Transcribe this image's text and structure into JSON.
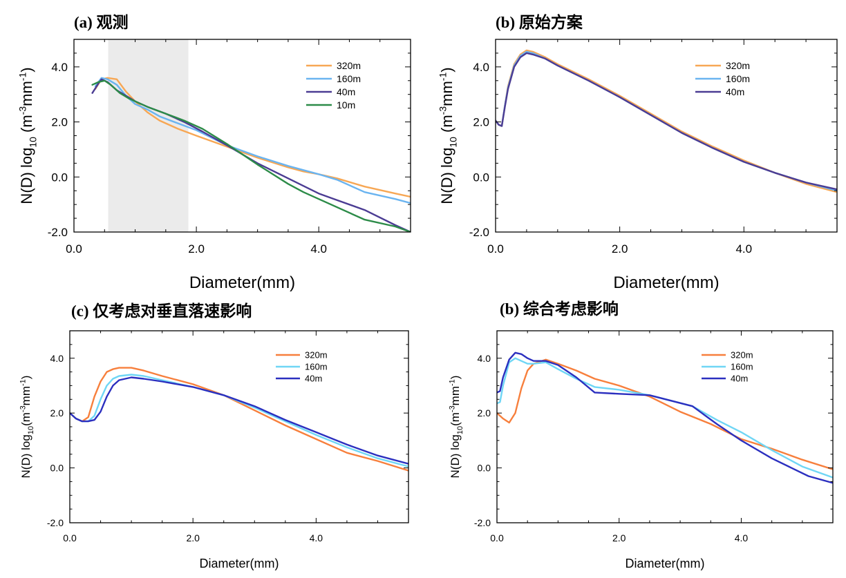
{
  "chart_data": [
    {
      "type": "line",
      "title": "(a) 观测",
      "xlabel": "Diameter(mm)",
      "ylabel": "N(D) log10 (m-3mm-1)",
      "ylabel_main": "N(D) log",
      "ylabel_sub": "10",
      "ylabel_unit_open": " (m",
      "ylabel_sup1": "-3",
      "ylabel_mid": "mm",
      "ylabel_sup2": "-1",
      "ylabel_close": ")",
      "xlim": [
        0,
        5.5
      ],
      "ylim": [
        -2,
        5
      ],
      "xticks": [
        "0.0",
        "2.0",
        "4.0"
      ],
      "yticks": [
        "-2.0",
        "0.0",
        "2.0",
        "4.0"
      ],
      "shaded_x_range": [
        0.56,
        1.87
      ],
      "shade_color": "#ebebeb",
      "legend_position": "top-right",
      "series": [
        {
          "name": "320m",
          "color": "#f7a754",
          "x": [
            0.35,
            0.45,
            0.55,
            0.7,
            0.85,
            1.0,
            1.2,
            1.4,
            1.7,
            2.0,
            2.5,
            3.0,
            3.5,
            3.75,
            4.0,
            4.3,
            4.75,
            5.25,
            5.5
          ],
          "y": [
            3.2,
            3.55,
            3.6,
            3.55,
            3.1,
            2.75,
            2.35,
            2.05,
            1.75,
            1.5,
            1.1,
            0.7,
            0.35,
            0.2,
            0.1,
            -0.05,
            -0.35,
            -0.6,
            -0.72
          ]
        },
        {
          "name": "160m",
          "color": "#6ab4f0",
          "x": [
            0.35,
            0.45,
            0.55,
            0.7,
            0.85,
            1.0,
            1.2,
            1.4,
            1.7,
            2.0,
            2.5,
            3.0,
            3.5,
            3.75,
            4.0,
            4.3,
            4.75,
            5.25,
            5.5
          ],
          "y": [
            3.3,
            3.6,
            3.55,
            3.35,
            2.95,
            2.65,
            2.45,
            2.2,
            1.95,
            1.7,
            1.15,
            0.75,
            0.4,
            0.25,
            0.1,
            -0.1,
            -0.55,
            -0.8,
            -0.95
          ]
        },
        {
          "name": "40m",
          "color": "#4b3c93",
          "x": [
            0.3,
            0.4,
            0.45,
            0.55,
            0.7,
            0.85,
            1.0,
            1.2,
            1.5,
            1.8,
            2.1,
            2.5,
            3.0,
            3.5,
            4.0,
            4.25,
            4.75,
            5.25,
            5.5
          ],
          "y": [
            3.05,
            3.4,
            3.55,
            3.45,
            3.15,
            2.95,
            2.75,
            2.55,
            2.3,
            2.0,
            1.65,
            1.15,
            0.5,
            -0.05,
            -0.6,
            -0.8,
            -1.2,
            -1.75,
            -2.0
          ]
        },
        {
          "name": "10m",
          "color": "#2c8b48",
          "x": [
            0.3,
            0.4,
            0.5,
            0.6,
            0.75,
            0.9,
            1.0,
            1.2,
            1.5,
            1.8,
            2.1,
            2.5,
            3.0,
            3.5,
            3.75,
            4.0,
            4.75,
            5.25,
            5.5
          ],
          "y": [
            3.35,
            3.45,
            3.5,
            3.35,
            3.05,
            2.85,
            2.75,
            2.55,
            2.3,
            2.05,
            1.75,
            1.2,
            0.45,
            -0.25,
            -0.55,
            -0.8,
            -1.55,
            -1.8,
            -2.0
          ]
        }
      ]
    },
    {
      "type": "line",
      "title": "(b) 原始方案",
      "xlabel": "Diameter(mm)",
      "ylabel": "N(D) log10 (m-3mm-1)",
      "ylabel_main": "N(D) log",
      "ylabel_sub": "10",
      "ylabel_unit_open": " (m",
      "ylabel_sup1": "-3",
      "ylabel_mid": "mm",
      "ylabel_sup2": "-1",
      "ylabel_close": ")",
      "xlim": [
        0,
        5.5
      ],
      "ylim": [
        -2,
        5
      ],
      "xticks": [
        "0.0",
        "2.0",
        "4.0"
      ],
      "yticks": [
        "-2.0",
        "0.0",
        "2.0",
        "4.0"
      ],
      "legend_position": "top-right",
      "series": [
        {
          "name": "320m",
          "color": "#f7a754",
          "x": [
            0.0,
            0.05,
            0.1,
            0.15,
            0.2,
            0.3,
            0.4,
            0.5,
            0.6,
            0.8,
            1.0,
            1.5,
            2.0,
            2.5,
            3.0,
            3.5,
            4.0,
            4.5,
            5.0,
            5.5
          ],
          "y": [
            2.05,
            1.9,
            1.85,
            2.6,
            3.3,
            4.1,
            4.45,
            4.6,
            4.55,
            4.35,
            4.1,
            3.55,
            2.95,
            2.3,
            1.65,
            1.1,
            0.6,
            0.15,
            -0.25,
            -0.55
          ]
        },
        {
          "name": "160m",
          "color": "#6ab4f0",
          "x": [
            0.0,
            0.05,
            0.1,
            0.15,
            0.2,
            0.3,
            0.4,
            0.5,
            0.6,
            0.8,
            1.0,
            1.5,
            2.0,
            2.5,
            3.0,
            3.5,
            4.0,
            4.5,
            5.0,
            5.5
          ],
          "y": [
            2.05,
            1.9,
            1.85,
            2.6,
            3.25,
            4.05,
            4.4,
            4.55,
            4.5,
            4.3,
            4.05,
            3.5,
            2.9,
            2.25,
            1.6,
            1.05,
            0.55,
            0.15,
            -0.2,
            -0.5
          ]
        },
        {
          "name": "40m",
          "color": "#4b3c93",
          "x": [
            0.0,
            0.05,
            0.1,
            0.15,
            0.2,
            0.3,
            0.4,
            0.5,
            0.6,
            0.8,
            1.0,
            1.5,
            2.0,
            2.5,
            3.0,
            3.5,
            4.0,
            4.5,
            5.0,
            5.5
          ],
          "y": [
            2.05,
            1.9,
            1.85,
            2.55,
            3.2,
            4.0,
            4.35,
            4.5,
            4.45,
            4.3,
            4.05,
            3.5,
            2.9,
            2.25,
            1.6,
            1.05,
            0.55,
            0.15,
            -0.2,
            -0.45
          ]
        }
      ]
    },
    {
      "type": "line",
      "title": "(c) 仅考虑对垂直落速影响",
      "xlabel": "Diameter(mm)",
      "ylabel": "N(D) log10(m-3mm-1)",
      "ylabel_main": "N(D) log",
      "ylabel_sub": "10",
      "ylabel_unit_open": "(m",
      "ylabel_sup1": "-3",
      "ylabel_mid": "mm",
      "ylabel_sup2": "-1",
      "ylabel_close": ")",
      "xlim": [
        0,
        5.5
      ],
      "ylim": [
        -2,
        5
      ],
      "xticks": [
        "0.0",
        "2.0",
        "4.0"
      ],
      "yticks": [
        "-2.0",
        "0.0",
        "2.0",
        "4.0"
      ],
      "legend_position": "top-right",
      "series": [
        {
          "name": "320m",
          "color": "#f77f3c",
          "x": [
            0.0,
            0.1,
            0.2,
            0.3,
            0.4,
            0.5,
            0.6,
            0.7,
            0.8,
            1.0,
            1.2,
            1.5,
            2.0,
            2.5,
            3.0,
            3.5,
            4.0,
            4.5,
            5.0,
            5.5
          ],
          "y": [
            2.0,
            1.8,
            1.7,
            1.85,
            2.6,
            3.15,
            3.5,
            3.6,
            3.65,
            3.65,
            3.55,
            3.35,
            3.05,
            2.65,
            2.1,
            1.55,
            1.05,
            0.55,
            0.25,
            -0.1
          ]
        },
        {
          "name": "160m",
          "color": "#6fd6f5",
          "x": [
            0.0,
            0.1,
            0.2,
            0.3,
            0.4,
            0.5,
            0.6,
            0.7,
            0.8,
            1.0,
            1.2,
            1.5,
            2.0,
            2.5,
            3.0,
            3.5,
            4.0,
            4.5,
            5.0,
            5.5
          ],
          "y": [
            2.0,
            1.8,
            1.7,
            1.7,
            1.9,
            2.5,
            3.0,
            3.25,
            3.35,
            3.4,
            3.35,
            3.2,
            2.95,
            2.65,
            2.2,
            1.7,
            1.2,
            0.75,
            0.35,
            0.05
          ]
        },
        {
          "name": "40m",
          "color": "#2b2fbf",
          "x": [
            0.0,
            0.1,
            0.2,
            0.3,
            0.4,
            0.5,
            0.6,
            0.7,
            0.8,
            1.0,
            1.2,
            1.5,
            2.0,
            2.5,
            3.0,
            3.5,
            4.0,
            4.5,
            5.0,
            5.5
          ],
          "y": [
            2.0,
            1.8,
            1.7,
            1.7,
            1.75,
            2.05,
            2.6,
            3.0,
            3.2,
            3.3,
            3.25,
            3.15,
            2.95,
            2.65,
            2.25,
            1.75,
            1.3,
            0.85,
            0.45,
            0.15
          ]
        }
      ]
    },
    {
      "type": "line",
      "title": "(b) 综合考虑影响",
      "xlabel": "Diameter(mm)",
      "ylabel": "N(D) log10(m-3mm-1)",
      "ylabel_main": "N(D) log",
      "ylabel_sub": "10",
      "ylabel_unit_open": "(m",
      "ylabel_sup1": "-3",
      "ylabel_mid": "mm",
      "ylabel_sup2": "-1",
      "ylabel_close": ")",
      "xlim": [
        0,
        5.5
      ],
      "ylim": [
        -2,
        5
      ],
      "xticks": [
        "0.0",
        "2.0",
        "4.0"
      ],
      "yticks": [
        "-2.0",
        "0.0",
        "2.0",
        "4.0"
      ],
      "legend_position": "top-right",
      "series": [
        {
          "name": "320m",
          "color": "#f77f3c",
          "x": [
            0.0,
            0.1,
            0.2,
            0.3,
            0.4,
            0.5,
            0.6,
            0.8,
            1.0,
            1.3,
            1.6,
            2.0,
            2.5,
            3.0,
            3.5,
            4.0,
            4.5,
            5.0,
            5.5
          ],
          "y": [
            2.0,
            1.8,
            1.65,
            2.0,
            2.9,
            3.55,
            3.8,
            3.95,
            3.8,
            3.55,
            3.25,
            3.0,
            2.6,
            2.05,
            1.6,
            1.05,
            0.7,
            0.3,
            -0.05
          ]
        },
        {
          "name": "160m",
          "color": "#6fd6f5",
          "x": [
            0.0,
            0.05,
            0.1,
            0.2,
            0.3,
            0.4,
            0.5,
            0.6,
            0.8,
            1.0,
            1.3,
            1.6,
            2.0,
            2.5,
            3.2,
            3.6,
            4.0,
            4.5,
            5.0,
            5.5
          ],
          "y": [
            2.35,
            2.4,
            3.0,
            3.85,
            4.0,
            3.9,
            3.8,
            3.8,
            3.85,
            3.6,
            3.25,
            2.95,
            2.85,
            2.65,
            2.25,
            1.75,
            1.3,
            0.65,
            0.05,
            -0.35
          ]
        },
        {
          "name": "40m",
          "color": "#2b2fbf",
          "x": [
            0.0,
            0.05,
            0.1,
            0.2,
            0.3,
            0.4,
            0.5,
            0.6,
            0.8,
            1.0,
            1.3,
            1.6,
            2.0,
            2.5,
            3.2,
            3.6,
            4.0,
            4.5,
            5.1,
            5.5
          ],
          "y": [
            2.75,
            2.8,
            3.3,
            3.95,
            4.2,
            4.15,
            4.0,
            3.9,
            3.9,
            3.75,
            3.3,
            2.75,
            2.7,
            2.65,
            2.25,
            1.6,
            1.0,
            0.35,
            -0.3,
            -0.55
          ]
        }
      ]
    }
  ]
}
